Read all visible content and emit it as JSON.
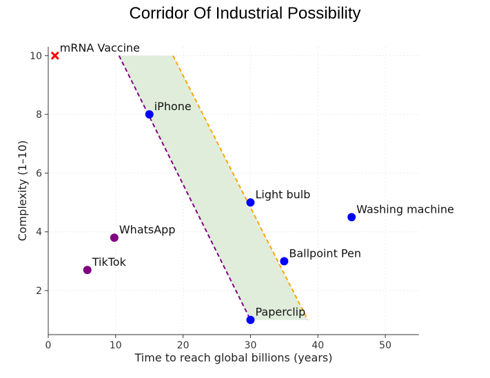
{
  "chart_data": {
    "type": "scatter",
    "title": "Corridor Of Industrial Possibility",
    "xlabel": "Time to reach global billions (years)",
    "ylabel": "Complexity (1–10)",
    "xlim": [
      0,
      55
    ],
    "ylim": [
      0.5,
      10.3
    ],
    "xticks": [
      0,
      10,
      20,
      30,
      40,
      50
    ],
    "yticks": [
      2,
      4,
      6,
      8,
      10
    ],
    "grid": true,
    "points": [
      {
        "label": "mRNA Vaccine",
        "x": 1,
        "y": 10,
        "color": "#ff0000",
        "marker": "x"
      },
      {
        "label": "iPhone",
        "x": 15,
        "y": 8,
        "color": "#0000ff",
        "marker": "circle"
      },
      {
        "label": "Light bulb",
        "x": 30,
        "y": 5,
        "color": "#0000ff",
        "marker": "circle"
      },
      {
        "label": "Washing machine",
        "x": 45,
        "y": 4.5,
        "color": "#0000ff",
        "marker": "circle"
      },
      {
        "label": "Ballpoint Pen",
        "x": 35,
        "y": 3,
        "color": "#0000ff",
        "marker": "circle"
      },
      {
        "label": "Paperclip",
        "x": 30,
        "y": 1,
        "color": "#0000ff",
        "marker": "circle"
      },
      {
        "label": "WhatsApp",
        "x": 9.8,
        "y": 3.8,
        "color": "#800080",
        "marker": "circle"
      },
      {
        "label": "TikTok",
        "x": 5.8,
        "y": 2.7,
        "color": "#800080",
        "marker": "circle"
      }
    ],
    "corridor": {
      "fill": "#d9ead3",
      "left_line": {
        "from": [
          10.5,
          10
        ],
        "to": [
          30,
          1
        ],
        "color": "#800080",
        "style": "dashed"
      },
      "right_line": {
        "from": [
          18.5,
          10
        ],
        "to": [
          38.5,
          1
        ],
        "color": "#ffa500",
        "style": "dashed"
      }
    }
  }
}
